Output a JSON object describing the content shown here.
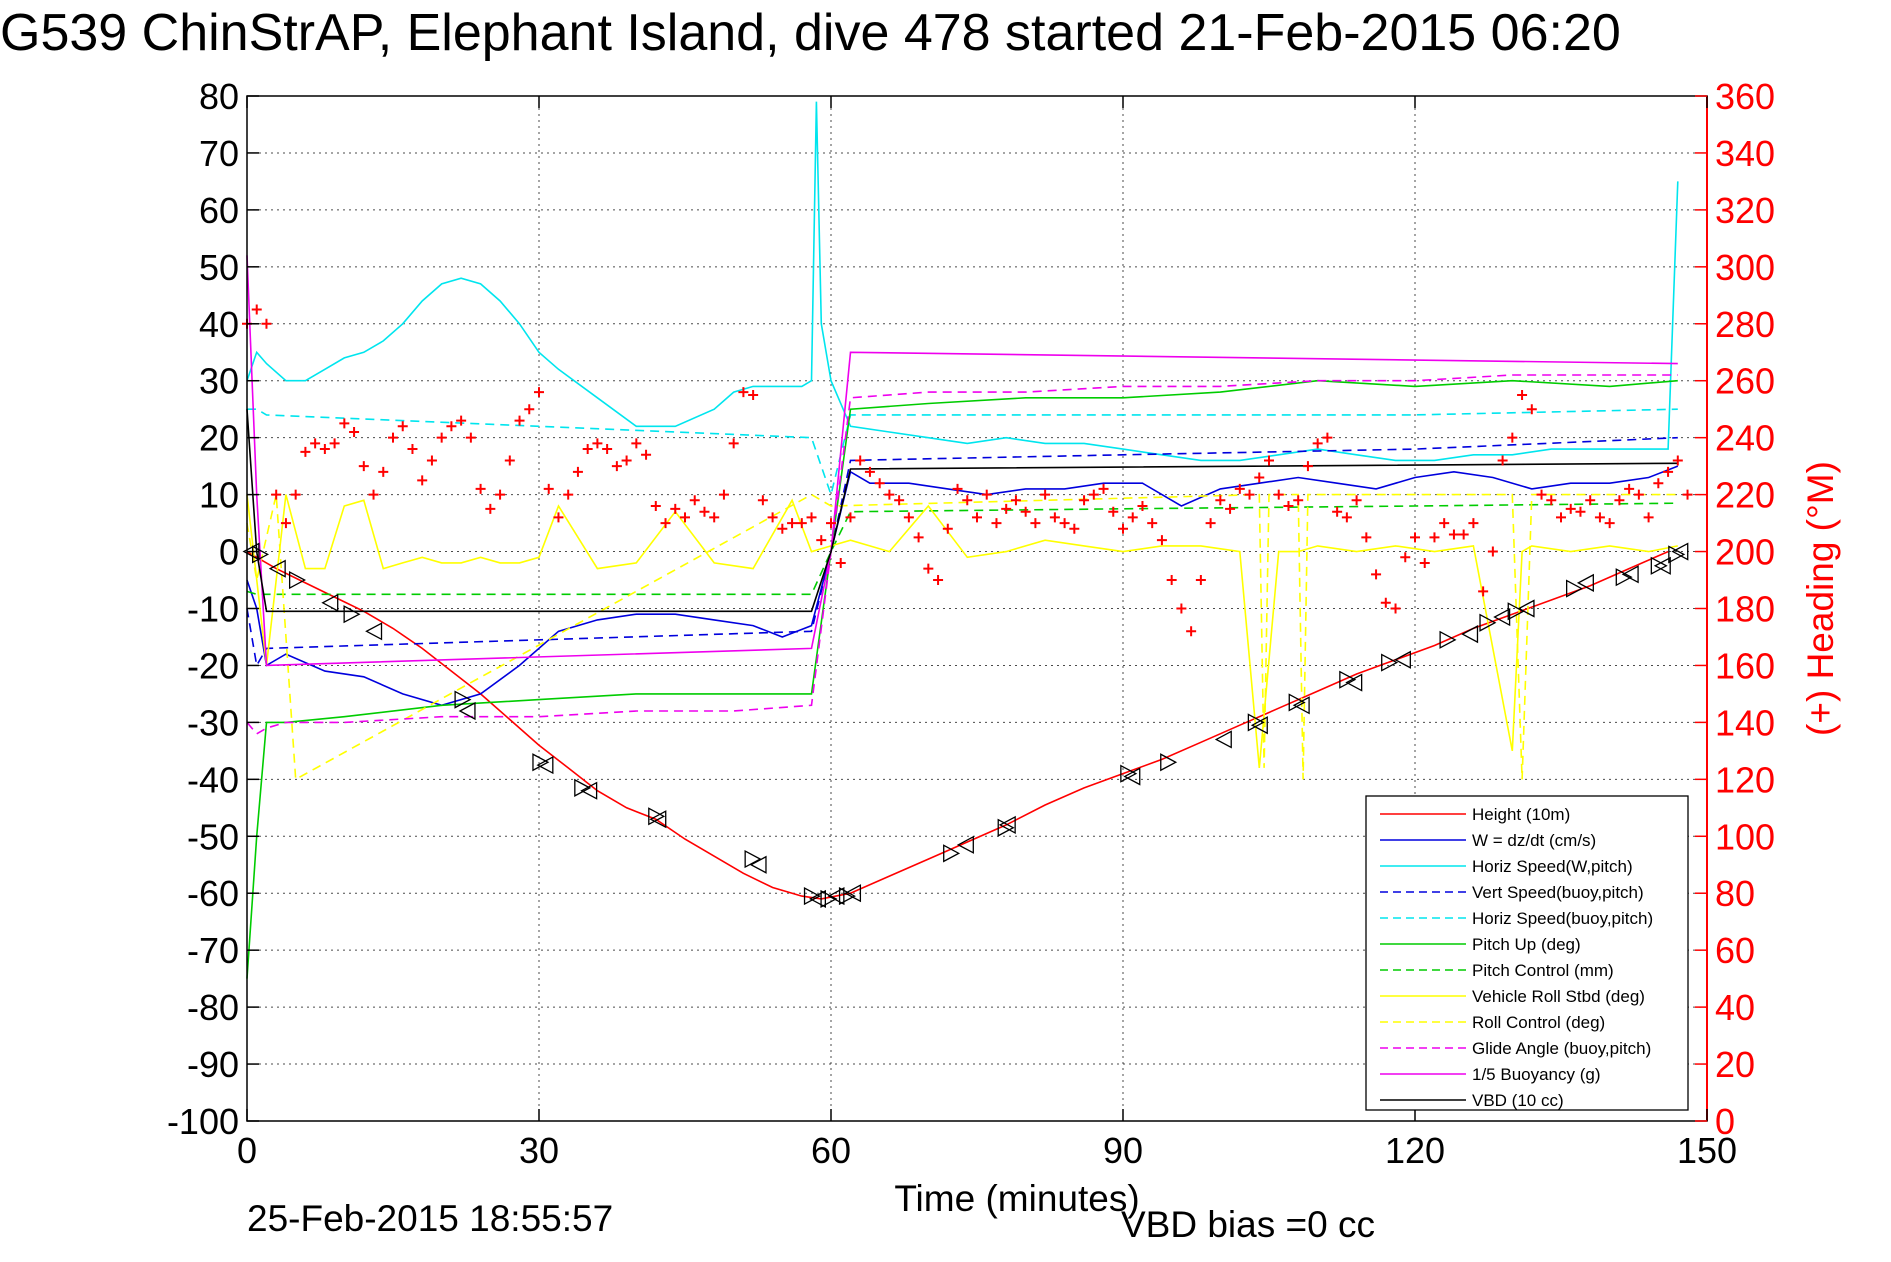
{
  "chart_data": {
    "type": "line",
    "title": "G539 ChinStrAP, Elephant Island, dive 478 started 21-Feb-2015 06:20",
    "xlabel": "Time (minutes)",
    "ylabel": "",
    "ylabel_right": "(+) Heading (°M)",
    "xlim": [
      0,
      150
    ],
    "ylim": [
      -100,
      80
    ],
    "ylim_right": [
      0,
      360
    ],
    "x_ticks": [
      0,
      30,
      60,
      90,
      120,
      150
    ],
    "y_ticks": [
      80,
      70,
      60,
      50,
      40,
      30,
      20,
      10,
      0,
      -10,
      -20,
      -30,
      -40,
      -50,
      -60,
      -70,
      -80,
      -90,
      -100
    ],
    "y_ticks_right": [
      360,
      340,
      320,
      300,
      280,
      260,
      240,
      220,
      200,
      180,
      160,
      140,
      120,
      100,
      80,
      60,
      40,
      20,
      0
    ],
    "grid": true,
    "legend_position": "lower-right",
    "series": [
      {
        "name": "Height (10m)",
        "color": "#ff0000",
        "style": "solid",
        "x": [
          0,
          1,
          3,
          6,
          9,
          12,
          15,
          18,
          21,
          24,
          27,
          30,
          33,
          36,
          39,
          42,
          45,
          48,
          51,
          54,
          57,
          59,
          62,
          66,
          70,
          74,
          78,
          82,
          86,
          90,
          94,
          98,
          102,
          106,
          110,
          114,
          118,
          122,
          126,
          130,
          134,
          138,
          142,
          146
        ],
        "values": [
          0,
          -1,
          -3,
          -5.5,
          -8,
          -10.5,
          -13.5,
          -17,
          -21,
          -25,
          -29.5,
          -34,
          -38,
          -42,
          -45,
          -47,
          -50.5,
          -53.5,
          -56.5,
          -59,
          -60.5,
          -61,
          -60,
          -57,
          -54,
          -51,
          -48,
          -44.5,
          -41.5,
          -39,
          -36.5,
          -33.5,
          -30.5,
          -27.5,
          -24.5,
          -21.5,
          -19,
          -16.5,
          -13.5,
          -11,
          -8.5,
          -6,
          -3,
          0
        ]
      },
      {
        "name": "W = dz/dt (cm/s)",
        "color": "#0000dd",
        "style": "solid",
        "x": [
          0,
          1,
          2,
          4,
          8,
          12,
          16,
          20,
          24,
          28,
          32,
          36,
          40,
          44,
          48,
          52,
          55,
          58,
          60,
          62,
          64,
          68,
          72,
          76,
          80,
          84,
          88,
          92,
          96,
          100,
          104,
          108,
          112,
          116,
          120,
          124,
          128,
          132,
          136,
          140,
          144,
          147
        ],
        "values": [
          -5,
          -10,
          -20,
          -18,
          -21,
          -22,
          -25,
          -27,
          -25,
          -20,
          -14,
          -12,
          -11,
          -11,
          -12,
          -13,
          -15,
          -13,
          0,
          14,
          12,
          12,
          11,
          10,
          11,
          11,
          12,
          12,
          8,
          11,
          12,
          13,
          12,
          11,
          13,
          14,
          13,
          11,
          12,
          12,
          13,
          15
        ]
      },
      {
        "name": "Horiz Speed(W,pitch)",
        "color": "#00e5ee",
        "style": "solid",
        "x": [
          0,
          1,
          2,
          4,
          6,
          8,
          10,
          12,
          14,
          16,
          18,
          20,
          22,
          24,
          26,
          28,
          30,
          32,
          36,
          40,
          44,
          48,
          50,
          52,
          55,
          57,
          58,
          58.5,
          59,
          60,
          62,
          66,
          70,
          74,
          78,
          82,
          86,
          90,
          94,
          98,
          102,
          106,
          110,
          114,
          118,
          122,
          126,
          130,
          134,
          138,
          142,
          146,
          147
        ],
        "values": [
          30,
          35,
          33,
          30,
          30,
          32,
          34,
          35,
          37,
          40,
          44,
          47,
          48,
          47,
          44,
          40,
          35,
          32,
          27,
          22,
          22,
          25,
          28,
          29,
          29,
          29,
          30,
          79,
          40,
          30,
          22,
          21,
          20,
          19,
          20,
          19,
          19,
          18,
          17,
          16,
          16,
          17,
          18,
          17,
          16,
          16,
          17,
          17,
          18,
          18,
          18,
          18,
          65
        ]
      },
      {
        "name": "Vert Speed(buoy,pitch)",
        "color": "#0000dd",
        "style": "dashed",
        "x": [
          0,
          1,
          2,
          58,
          60,
          62,
          90,
          120,
          147
        ],
        "values": [
          -10,
          -20,
          -17,
          -14,
          0,
          16,
          17,
          18,
          20
        ]
      },
      {
        "name": "Horiz Speed(buoy,pitch)",
        "color": "#00e5ee",
        "style": "dashed",
        "x": [
          0,
          1,
          2,
          30,
          58,
          60,
          62,
          90,
          120,
          147
        ],
        "values": [
          25,
          25,
          24,
          22,
          20,
          10,
          24,
          24,
          24,
          25
        ]
      },
      {
        "name": "Pitch Up (deg)",
        "color": "#00cc00",
        "style": "solid",
        "x": [
          0,
          1,
          2,
          4,
          10,
          20,
          30,
          40,
          50,
          58,
          60,
          62,
          70,
          80,
          90,
          100,
          110,
          120,
          130,
          140,
          147
        ],
        "values": [
          -75,
          -50,
          -30,
          -30,
          -29,
          -27,
          -26,
          -25,
          -25,
          -25,
          0,
          25,
          26,
          27,
          27,
          28,
          30,
          29,
          30,
          29,
          30
        ]
      },
      {
        "name": "Pitch Control (mm)",
        "color": "#00cc00",
        "style": "dashed",
        "x": [
          0,
          1,
          2,
          58,
          60,
          62,
          90,
          120,
          147
        ],
        "values": [
          -7,
          -7.5,
          -7.5,
          -7.5,
          0,
          7,
          7.5,
          8,
          8.5
        ]
      },
      {
        "name": "Vehicle Roll Stbd (deg)",
        "color": "#ffff00",
        "style": "solid",
        "x": [
          0,
          2,
          4,
          6,
          8,
          10,
          12,
          14,
          16,
          18,
          20,
          22,
          24,
          26,
          28,
          30,
          32,
          36,
          40,
          44,
          48,
          52,
          56,
          58,
          60,
          62,
          66,
          70,
          74,
          78,
          82,
          86,
          90,
          94,
          98,
          102,
          104,
          106,
          108,
          110,
          114,
          118,
          122,
          126,
          130,
          131,
          132,
          136,
          140,
          144,
          147
        ],
        "values": [
          10,
          -20,
          10,
          -3,
          -3,
          8,
          9,
          -3,
          -2,
          -1,
          -2,
          -2,
          -1,
          -2,
          -2,
          -1,
          8,
          -3,
          -2,
          7,
          -2,
          -3,
          9,
          0,
          1,
          2,
          0,
          8,
          -1,
          0,
          2,
          1,
          0,
          1,
          1,
          0,
          -38,
          0,
          0,
          1,
          0,
          1,
          0,
          1,
          -35,
          0,
          1,
          0,
          1,
          0,
          1
        ]
      },
      {
        "name": "Roll Control (deg)",
        "color": "#ffff00",
        "style": "dashed",
        "x": [
          0,
          1,
          3,
          5,
          58,
          60,
          104,
          104.5,
          105,
          108,
          108.5,
          109,
          130,
          131,
          132,
          147
        ],
        "values": [
          5,
          -5,
          10,
          -40,
          10,
          8,
          10,
          -38,
          10,
          10,
          -40,
          10,
          10,
          -40,
          10,
          10
        ]
      },
      {
        "name": "Glide Angle (buoy,pitch)",
        "color": "#ee00ee",
        "style": "dashed",
        "x": [
          0,
          1,
          2,
          4,
          10,
          20,
          30,
          40,
          50,
          58,
          60,
          62,
          70,
          80,
          90,
          100,
          110,
          120,
          130,
          140,
          147
        ],
        "values": [
          -30,
          -32,
          -31,
          -30,
          -30,
          -29,
          -29,
          -28,
          -28,
          -27,
          0,
          27,
          28,
          28,
          29,
          29,
          30,
          30,
          31,
          31,
          31
        ]
      },
      {
        "name": "1/5 Buoyancy (g)",
        "color": "#ee00ee",
        "style": "solid",
        "x": [
          0,
          1,
          2,
          58,
          60,
          62,
          147
        ],
        "values": [
          52,
          10,
          -20,
          -17,
          0,
          35,
          33
        ]
      },
      {
        "name": "VBD (10 cc)",
        "color": "#000000",
        "style": "solid",
        "x": [
          0,
          1,
          2,
          58,
          60,
          62,
          147
        ],
        "values": [
          25,
          0,
          -10.5,
          -10.5,
          0,
          14.5,
          15.5
        ]
      },
      {
        "name": "(+) Heading (°M)",
        "axis": "right",
        "color": "#ff0000",
        "style": "markers",
        "x": [
          0,
          1,
          2,
          3,
          4,
          5,
          6,
          7,
          8,
          9,
          10,
          11,
          12,
          13,
          14,
          15,
          16,
          17,
          18,
          19,
          20,
          21,
          22,
          23,
          24,
          25,
          26,
          27,
          28,
          29,
          30,
          31,
          32,
          33,
          34,
          35,
          36,
          37,
          38,
          39,
          40,
          41,
          42,
          43,
          44,
          45,
          46,
          47,
          48,
          49,
          50,
          51,
          52,
          53,
          54,
          55,
          56,
          57,
          58,
          59,
          60,
          61,
          62,
          63,
          64,
          65,
          66,
          67,
          68,
          69,
          70,
          71,
          72,
          73,
          74,
          75,
          76,
          77,
          78,
          79,
          80,
          81,
          82,
          83,
          84,
          85,
          86,
          87,
          88,
          89,
          90,
          91,
          92,
          93,
          94,
          95,
          96,
          97,
          98,
          99,
          100,
          101,
          102,
          103,
          104,
          105,
          106,
          107,
          108,
          109,
          110,
          111,
          112,
          113,
          114,
          115,
          116,
          117,
          118,
          119,
          120,
          121,
          122,
          123,
          124,
          125,
          126,
          127,
          128,
          129,
          130,
          131,
          132,
          133,
          134,
          135,
          136,
          137,
          138,
          139,
          140,
          141,
          142,
          143,
          144,
          145,
          146,
          147,
          148
        ],
        "values": [
          280,
          285,
          280,
          220,
          210,
          220,
          235,
          238,
          236,
          238,
          245,
          242,
          230,
          220,
          228,
          240,
          244,
          236,
          225,
          232,
          240,
          244,
          246,
          240,
          222,
          215,
          220,
          232,
          246,
          250,
          256,
          222,
          212,
          220,
          228,
          236,
          238,
          236,
          230,
          232,
          238,
          234,
          216,
          210,
          215,
          212,
          218,
          214,
          212,
          220,
          238,
          256,
          255,
          218,
          212,
          208,
          210,
          210,
          212,
          204,
          210,
          196,
          212,
          232,
          228,
          224,
          220,
          218,
          212,
          205,
          194,
          190,
          208,
          222,
          218,
          212,
          220,
          210,
          215,
          218,
          214,
          210,
          220,
          212,
          210,
          208,
          218,
          220,
          222,
          214,
          208,
          212,
          216,
          210,
          204,
          190,
          180,
          172,
          190,
          210,
          218,
          215,
          222,
          220,
          226,
          232,
          220,
          216,
          218,
          230,
          238,
          240,
          214,
          212,
          218,
          205,
          192,
          182,
          180,
          198,
          205,
          196,
          205,
          210,
          206,
          206,
          210,
          186,
          200,
          232,
          240,
          255,
          250,
          220,
          218,
          212,
          215,
          214,
          218,
          212,
          210,
          218,
          222,
          220,
          212,
          224,
          228,
          232,
          220
        ]
      }
    ],
    "markers_series": {
      "note": "",
      "x": [
        0.5,
        1.3,
        3.2,
        5.1,
        8.6,
        10.7,
        13.1,
        22.1,
        22.7,
        30.1,
        30.7,
        34.4,
        35.2,
        42.0,
        42.3,
        51.9,
        52.6,
        58.0,
        58.7,
        59.7,
        60.6,
        61.6,
        62.3,
        72.3,
        73.9,
        77.9,
        78.2,
        90.5,
        91.0,
        94.6,
        100.4,
        103.6,
        104.1,
        107.8,
        108.4,
        113.0,
        113.8,
        117.3,
        118.8,
        123.3,
        125.7,
        127.4,
        129.0,
        130.3,
        131.5,
        136.3,
        137.6,
        141.4,
        142.2,
        145.0,
        145.5,
        146.8,
        147.3
      ],
      "values": [
        0,
        -0.5,
        -3,
        -5,
        -9,
        -11,
        -14,
        -26,
        -28,
        -37,
        -37.5,
        -41.5,
        -42,
        -46.5,
        -47,
        -54,
        -55,
        -60.5,
        -61,
        -61,
        -60.5,
        -60.5,
        -60,
        -53,
        -51.5,
        -48.5,
        -48,
        -39,
        -39.5,
        -37,
        -33,
        -30,
        -30.5,
        -26.5,
        -27,
        -22.5,
        -23,
        -19.5,
        -19,
        -15.5,
        -14.5,
        -12.5,
        -11.5,
        -10.5,
        -10,
        -6.5,
        -5.5,
        -4.5,
        -4,
        -2.5,
        -2.5,
        -0.5,
        0
      ]
    }
  },
  "footer": {
    "timestamp": "25-Feb-2015 18:55:57",
    "vbd_bias": "VBD bias =0 cc"
  }
}
